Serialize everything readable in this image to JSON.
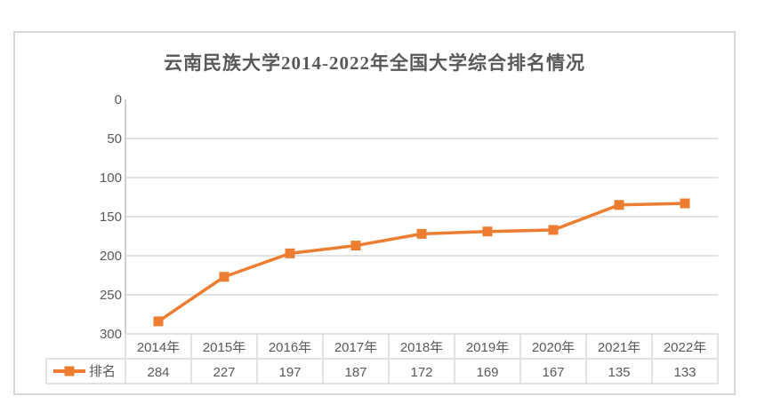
{
  "chart_data": {
    "type": "line",
    "title": "云南民族大学2014-2022年全国大学综合排名情况",
    "categories": [
      "2014年",
      "2015年",
      "2016年",
      "2017年",
      "2018年",
      "2019年",
      "2020年",
      "2021年",
      "2022年"
    ],
    "series": [
      {
        "name": "排名",
        "values": [
          284,
          227,
          197,
          187,
          172,
          169,
          167,
          135,
          133
        ]
      }
    ],
    "y_axis": {
      "min": 0,
      "max": 300,
      "ticks": [
        0,
        50,
        100,
        150,
        200,
        250,
        300
      ],
      "inverted": true
    },
    "grid": true,
    "legend_position": "data-table-left",
    "marker_shape": "square",
    "colors": {
      "series": "#ED7D31",
      "text": "#595959",
      "gridline": "#D9D9D9",
      "axis_line": "#BFBFBF",
      "table_border": "#D9D9D9",
      "chart_border": "#D9D9D9",
      "background": "#FFFFFF"
    }
  }
}
